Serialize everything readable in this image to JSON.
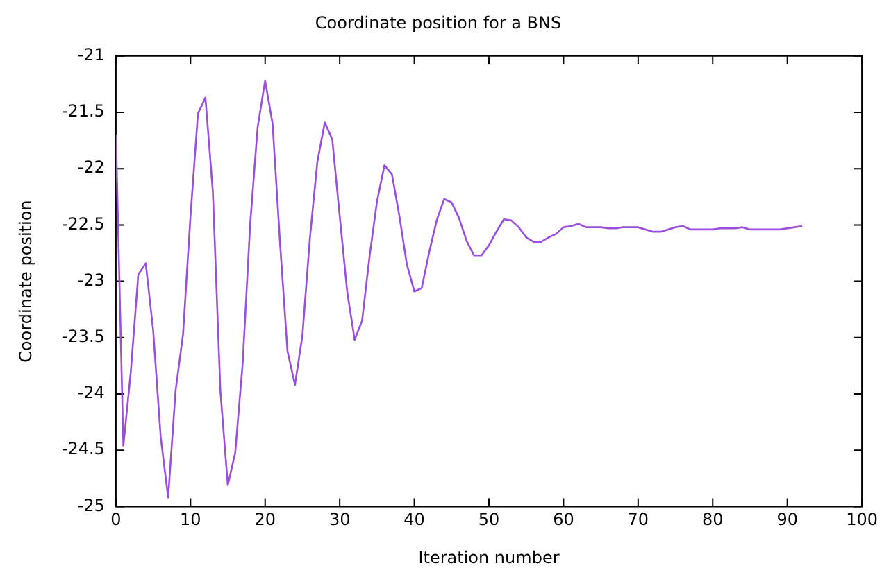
{
  "chart_data": {
    "type": "line",
    "title": "Coordinate position for a BNS",
    "xlabel": "Iteration number",
    "ylabel": "Coordinate position",
    "x": [
      0,
      1,
      2,
      3,
      4,
      5,
      6,
      7,
      8,
      9,
      10,
      11,
      12,
      13,
      14,
      15,
      16,
      17,
      18,
      19,
      20,
      21,
      22,
      23,
      24,
      25,
      26,
      27,
      28,
      29,
      30,
      31,
      32,
      33,
      34,
      35,
      36,
      37,
      38,
      39,
      40,
      41,
      42,
      43,
      44,
      45,
      46,
      47,
      48,
      49,
      50,
      51,
      52,
      53,
      54,
      55,
      56,
      57,
      58,
      59,
      60,
      61,
      62,
      63,
      64,
      65,
      66,
      67,
      68,
      69,
      70,
      71,
      72,
      73,
      74,
      75,
      76,
      77,
      78,
      79,
      80,
      81,
      82,
      83,
      84,
      85,
      86,
      87,
      88,
      89,
      90,
      91,
      92
    ],
    "series": [
      {
        "color": "#9b4de0",
        "values": [
          -21.7,
          -24.46,
          -23.8,
          -22.94,
          -22.84,
          -23.44,
          -24.38,
          -24.92,
          -23.97,
          -23.47,
          -22.42,
          -21.51,
          -21.37,
          -22.21,
          -23.97,
          -24.81,
          -24.52,
          -23.72,
          -22.49,
          -21.63,
          -21.22,
          -21.6,
          -22.66,
          -23.62,
          -23.92,
          -23.48,
          -22.62,
          -21.94,
          -21.59,
          -21.74,
          -22.42,
          -23.09,
          -23.52,
          -23.35,
          -22.78,
          -22.29,
          -21.97,
          -22.05,
          -22.42,
          -22.85,
          -23.09,
          -23.06,
          -22.74,
          -22.46,
          -22.27,
          -22.3,
          -22.44,
          -22.64,
          -22.77,
          -22.77,
          -22.68,
          -22.56,
          -22.45,
          -22.46,
          -22.52,
          -22.61,
          -22.65,
          -22.65,
          -22.61,
          -22.58,
          -22.52,
          -22.51,
          -22.49,
          -22.52,
          -22.52,
          -22.52,
          -22.53,
          -22.53,
          -22.52,
          -22.52,
          -22.52,
          -22.54,
          -22.56,
          -22.56,
          -22.54,
          -22.52,
          -22.51,
          -22.54,
          -22.54,
          -22.54,
          -22.54,
          -22.53,
          -22.53,
          -22.53,
          -22.52,
          -22.54,
          -22.54,
          -22.54,
          -22.54,
          -22.54,
          -22.53,
          -22.52,
          -22.51
        ]
      }
    ],
    "xlim": [
      0,
      100
    ],
    "xticks": [
      0,
      10,
      20,
      30,
      40,
      50,
      60,
      70,
      80,
      90,
      100
    ],
    "ylim": [
      -25,
      -21
    ],
    "yticks": [
      -25,
      -24.5,
      -24,
      -23.5,
      -23,
      -22.5,
      -22,
      -21.5,
      -21
    ],
    "grid": false,
    "legend": false,
    "marker": "none",
    "line_style": "solid"
  }
}
